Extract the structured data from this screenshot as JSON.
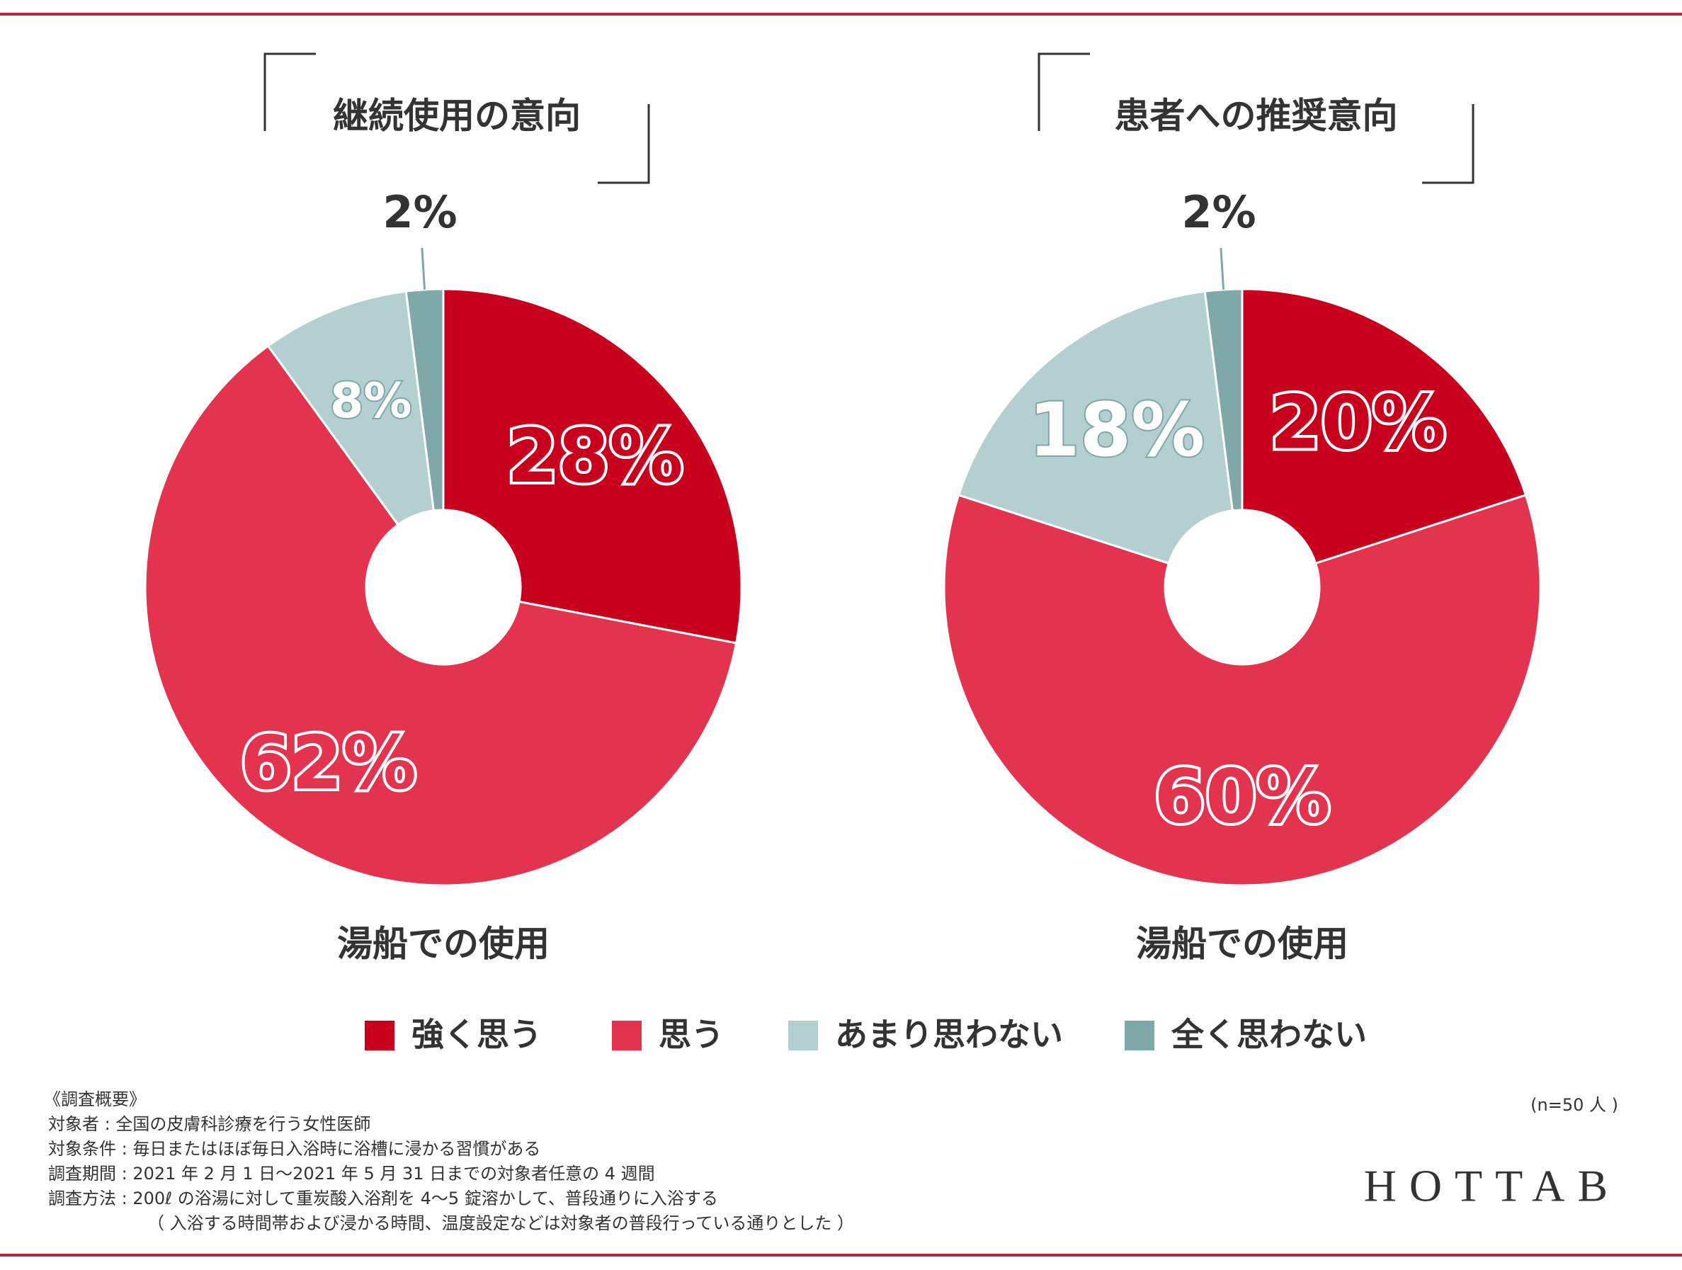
{
  "legend": [
    {
      "name": "強く思う",
      "color": "#c8001e"
    },
    {
      "name": "思う",
      "color": "#e3334f"
    },
    {
      "name": "あまり思わない",
      "color": "#b3cfcf"
    },
    {
      "name": "全く思わない",
      "color": "#7fa8a8"
    }
  ],
  "chart_data": [
    {
      "type": "pie",
      "title": "継続使用の意向",
      "subtitle": "湯船での使用",
      "values": [
        28,
        62,
        8,
        2
      ],
      "value_labels": [
        "28%",
        "62%",
        "8%",
        "2%"
      ]
    },
    {
      "type": "pie",
      "title": "患者への推奨意向",
      "subtitle": "湯船での使用",
      "values": [
        20,
        60,
        18,
        2
      ],
      "value_labels": [
        "20%",
        "60%",
        "18%",
        "2%"
      ]
    }
  ],
  "notes": {
    "heading": "《調査概要》",
    "lines": [
      "対象者 : 全国の皮膚科診療を行う女性医師",
      "対象条件 : 毎日またはほぼ毎日入浴時に浴槽に浸かる習慣がある",
      "調査期間 : 2021 年 2 月 1 日〜2021 年 5 月 31 日までの対象者任意の 4 週間",
      "調査方法 : 200ℓ の浴湯に対して重炭酸入浴剤を 4〜5 錠溶かして、普段通りに入浴する",
      "（ 入浴する時間帯および浸かる時間、温度設定などは対象者の普段行っている通りとした ）"
    ],
    "sample": "(n=50 人 )"
  },
  "logo": "HOTTAB"
}
